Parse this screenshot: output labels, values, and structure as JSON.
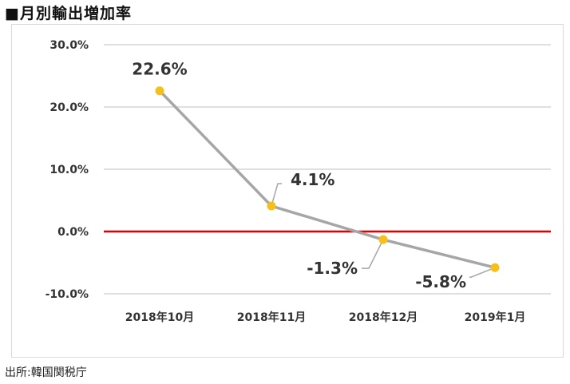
{
  "header": {
    "title": "■月別輸出増加率"
  },
  "footer": {
    "source": "出所:韓国関税庁"
  },
  "chart_data": {
    "type": "line",
    "categories": [
      "2018年10月",
      "2018年11月",
      "2018年12月",
      "2019年1月"
    ],
    "series": [
      {
        "values": [
          22.6,
          4.1,
          -1.3,
          -5.8
        ]
      }
    ],
    "data_labels": [
      "22.6%",
      "4.1%",
      "-1.3%",
      "-5.8%"
    ],
    "y_ticks": [
      30,
      20,
      10,
      0,
      -10
    ],
    "y_tick_labels": [
      "30.0%",
      "20.0%",
      "10.0%",
      "0.0%",
      "-10.0%"
    ],
    "ylim": [
      -10,
      30
    ],
    "grid": true,
    "zero_line": true,
    "legend": "none",
    "colors": {
      "line": "#a6a6a6",
      "marker": "#f5c019",
      "zero_line": "#e00000",
      "grid": "#bfbfbf",
      "leader": "#a6a6a6"
    }
  }
}
